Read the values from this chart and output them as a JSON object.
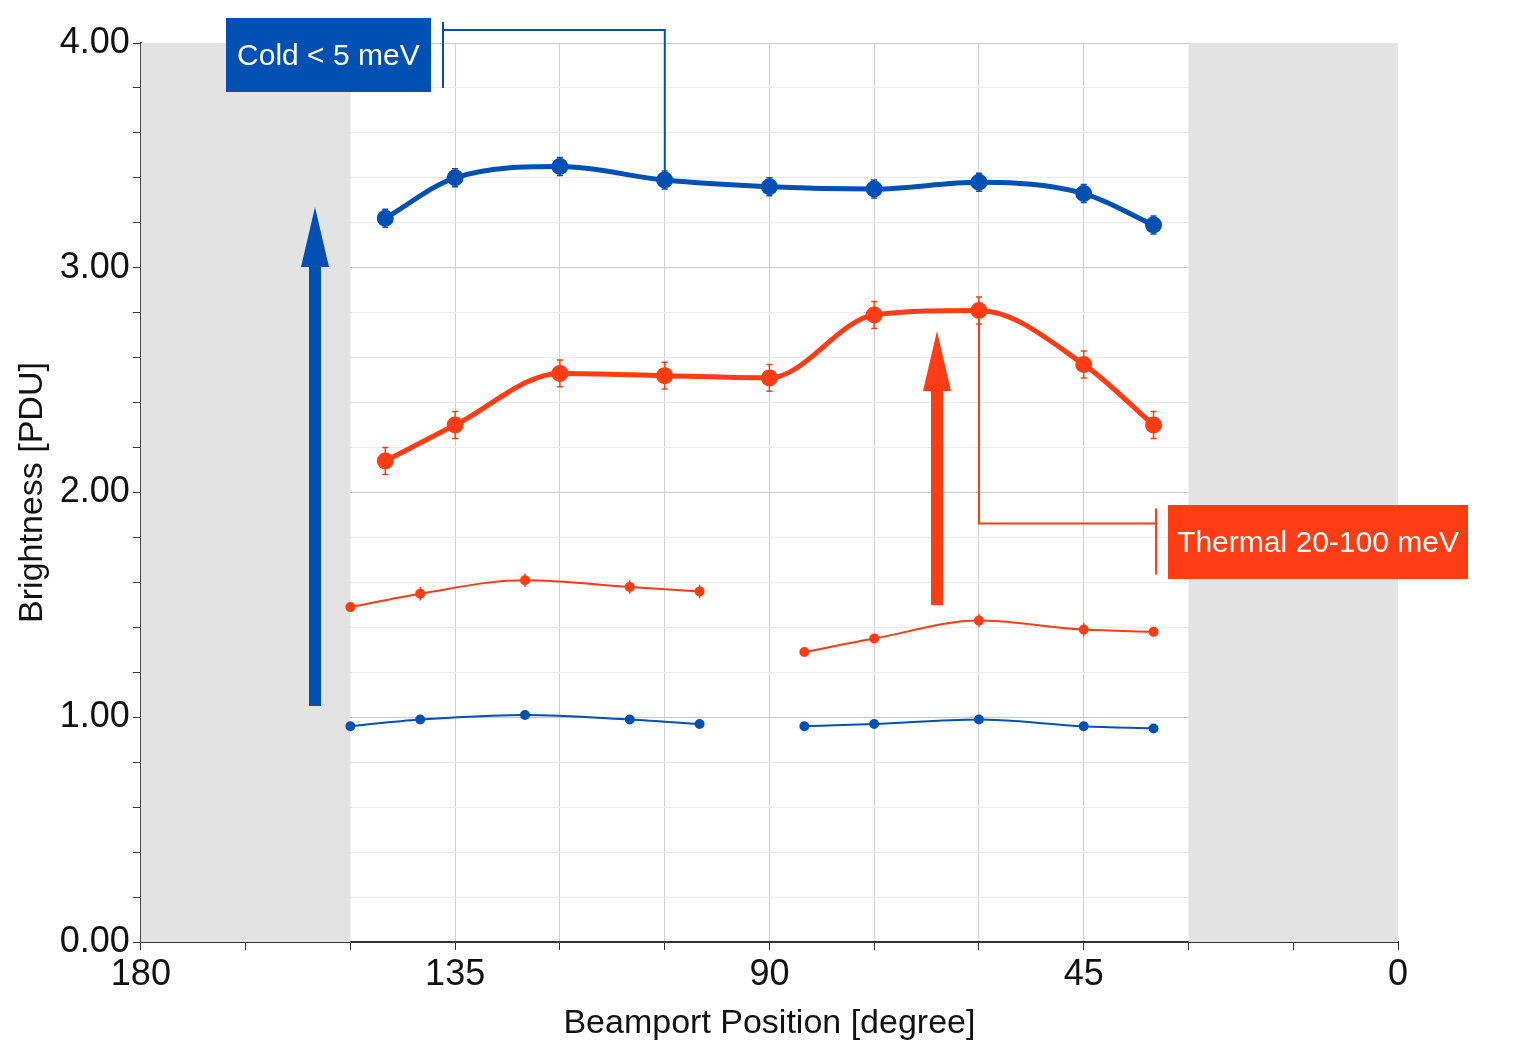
{
  "chart_data": {
    "type": "line",
    "xlabel": "Beamport Position [degree]",
    "ylabel": "Brightness [PDU]",
    "xlim": [
      180,
      0
    ],
    "xticks": [
      180,
      {
        "value": 165,
        "label": null
      },
      {
        "value": 150,
        "label": null
      },
      135,
      {
        "value": 120,
        "label": null
      },
      {
        "value": 105,
        "label": null
      },
      90,
      {
        "value": 75,
        "label": null
      },
      {
        "value": 60,
        "label": null
      },
      45,
      {
        "value": 30,
        "label": null
      },
      {
        "value": 15,
        "label": null
      },
      0
    ],
    "ylim": [
      0,
      4
    ],
    "yticks": [
      {
        "value": 0,
        "label": "0.00"
      },
      {
        "value": 0.2,
        "label": null
      },
      {
        "value": 0.4,
        "label": null
      },
      {
        "value": 0.6,
        "label": null
      },
      {
        "value": 0.8,
        "label": null
      },
      {
        "value": 1,
        "label": "1.00"
      },
      {
        "value": 1.2,
        "label": null
      },
      {
        "value": 1.4,
        "label": null
      },
      {
        "value": 1.6,
        "label": null
      },
      {
        "value": 1.8,
        "label": null
      },
      {
        "value": 2,
        "label": "2.00"
      },
      {
        "value": 2.2,
        "label": null
      },
      {
        "value": 2.4,
        "label": null
      },
      {
        "value": 2.6,
        "label": null
      },
      {
        "value": 2.8,
        "label": null
      },
      {
        "value": 3,
        "label": "3.00"
      },
      {
        "value": 3.2,
        "label": null
      },
      {
        "value": 3.4,
        "label": null
      },
      {
        "value": 3.6,
        "label": null
      },
      {
        "value": 3.8,
        "label": null
      },
      {
        "value": 4,
        "label": "4.00"
      }
    ],
    "grid": true,
    "legend": false,
    "marker": "circle",
    "line_style": "solid",
    "bands": [
      {
        "axis": "x",
        "from": 180,
        "to": 150,
        "color": "#e3e3e3"
      },
      {
        "axis": "x",
        "from": 30,
        "to": 0,
        "color": "#e3e3e3"
      }
    ],
    "annotations": [
      {
        "text": "Cold < 5 meV",
        "x": 105,
        "y": 3.39
      },
      {
        "text": "Thermal 20-100 meV",
        "x": 60,
        "y": 2.81
      }
    ],
    "series": [
      {
        "color": "#0050b4",
        "x": [
          145,
          135,
          120,
          105,
          90,
          75,
          60,
          45,
          35
        ],
        "values": [
          3.22,
          3.4,
          3.45,
          3.39,
          3.36,
          3.35,
          3.38,
          3.33,
          3.19
        ],
        "errors": [
          0.04,
          0.04,
          0.04,
          0.04,
          0.04,
          0.04,
          0.04,
          0.04,
          0.04
        ]
      },
      {
        "color": "#ff3c14",
        "x": [
          145,
          135,
          120,
          105,
          90,
          75,
          60,
          45,
          35
        ],
        "values": [
          2.14,
          2.3,
          2.53,
          2.52,
          2.51,
          2.79,
          2.81,
          2.57,
          2.3
        ],
        "errors": [
          0.06,
          0.06,
          0.06,
          0.06,
          0.06,
          0.06,
          0.06,
          0.06,
          0.06
        ]
      },
      {
        "color": "#ff3c14",
        "x": [
          150,
          140,
          125,
          110,
          100
        ],
        "values": [
          1.49,
          1.55,
          1.61,
          1.58,
          1.56
        ],
        "errors": [
          0.02,
          0.03,
          0.03,
          0.03,
          0.03
        ]
      },
      {
        "color": "#ff3c14",
        "x": [
          85,
          75,
          60,
          45,
          35
        ],
        "values": [
          1.29,
          1.35,
          1.43,
          1.39,
          1.38
        ],
        "errors": [
          0.02,
          0.02,
          0.03,
          0.03,
          0.02
        ]
      },
      {
        "color": "#0050b4",
        "x": [
          150,
          140,
          125,
          110,
          100
        ],
        "values": [
          0.96,
          0.99,
          1.01,
          0.99,
          0.97
        ],
        "errors": [
          0.01,
          0.01,
          0.01,
          0.01,
          0.01
        ]
      },
      {
        "color": "#0050b4",
        "x": [
          85,
          75,
          60,
          45,
          35
        ],
        "values": [
          0.96,
          0.97,
          0.99,
          0.96,
          0.95
        ],
        "errors": [
          0.01,
          0.01,
          0.01,
          0.01,
          0.01
        ]
      }
    ]
  }
}
